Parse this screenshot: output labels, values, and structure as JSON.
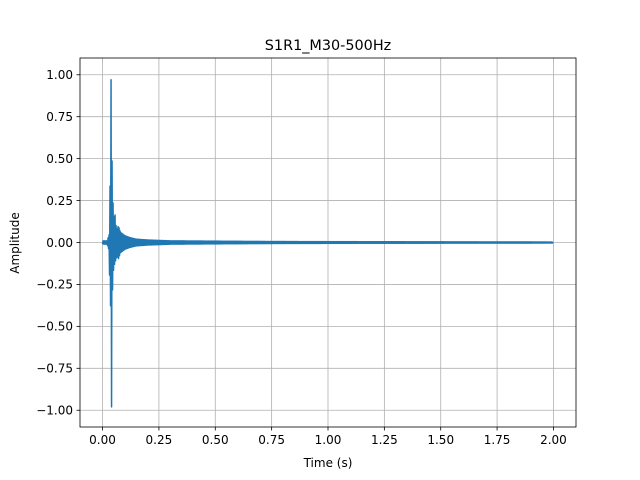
{
  "chart_data": {
    "type": "line",
    "title": "S1R1_M30-500Hz",
    "xlabel": "Time (s)",
    "ylabel": "Amplitude",
    "xlim": [
      -0.1,
      2.1
    ],
    "ylim": [
      -1.1,
      1.1
    ],
    "xticks": [
      0.0,
      0.25,
      0.5,
      0.75,
      1.0,
      1.25,
      1.5,
      1.75,
      2.0
    ],
    "xtick_labels": [
      "0.00",
      "0.25",
      "0.50",
      "0.75",
      "1.00",
      "1.25",
      "1.50",
      "1.75",
      "2.00"
    ],
    "yticks": [
      -1.0,
      -0.75,
      -0.5,
      -0.25,
      0.0,
      0.25,
      0.5,
      0.75,
      1.0
    ],
    "ytick_labels": [
      "−1.00",
      "−0.75",
      "−0.50",
      "−0.25",
      "0.00",
      "0.25",
      "0.50",
      "0.75",
      "1.00"
    ],
    "grid": true,
    "series": [
      {
        "color": "#1f77b4",
        "x": [
          0.0,
          0.02,
          0.03,
          0.034,
          0.036,
          0.038,
          0.04,
          0.042,
          0.044,
          0.046,
          0.05,
          0.055,
          0.06,
          0.065,
          0.07,
          0.08,
          0.09,
          0.1,
          0.12,
          0.15,
          0.2,
          0.3,
          0.5,
          0.75,
          1.0,
          1.5,
          2.0
        ],
        "upper": [
          0.01,
          0.01,
          0.05,
          0.4,
          0.8,
          1.0,
          0.95,
          0.5,
          0.3,
          0.25,
          0.15,
          0.17,
          0.1,
          0.08,
          0.1,
          0.06,
          0.05,
          0.04,
          0.03,
          0.02,
          0.015,
          0.01,
          0.008,
          0.006,
          0.005,
          0.004,
          0.003
        ],
        "lower": [
          -0.01,
          -0.01,
          -0.05,
          -0.6,
          -0.3,
          -0.5,
          -1.0,
          -0.45,
          -0.3,
          -0.2,
          -0.15,
          -0.12,
          -0.1,
          -0.08,
          -0.1,
          -0.06,
          -0.05,
          -0.04,
          -0.03,
          -0.02,
          -0.015,
          -0.01,
          -0.008,
          -0.006,
          -0.005,
          -0.004,
          -0.003
        ]
      }
    ]
  }
}
